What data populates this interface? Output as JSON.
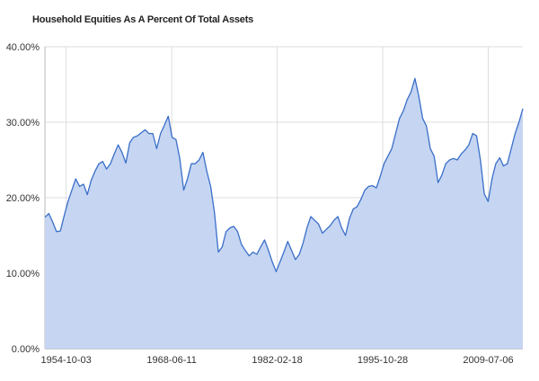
{
  "chart_data": {
    "type": "area",
    "title": "Household Equities As A Percent Of Total Assets",
    "xlabel": "",
    "ylabel": "",
    "ylim": [
      0,
      40
    ],
    "ytick_labels": [
      "0.00%",
      "10.00%",
      "20.00%",
      "30.00%",
      "40.00%"
    ],
    "xtick_labels": [
      "1954-10-03",
      "1968-06-11",
      "1982-02-18",
      "1995-10-28",
      "2009-07-06"
    ],
    "grid": true,
    "legend": "none",
    "colors": {
      "line": "#3a6fc8",
      "fill": "#c5d5f2",
      "grid": "#dddddd"
    },
    "series": [
      {
        "x": [
          "1951-12-31",
          "1952-06-30",
          "1952-12-31",
          "1953-06-30",
          "1953-12-31",
          "1954-06-30",
          "1954-12-31",
          "1955-06-30",
          "1955-12-31",
          "1956-06-30",
          "1956-12-31",
          "1957-06-30",
          "1957-12-31",
          "1958-06-30",
          "1958-12-31",
          "1959-06-30",
          "1959-12-31",
          "1960-06-30",
          "1960-12-31",
          "1961-06-30",
          "1961-12-31",
          "1962-06-30",
          "1962-12-31",
          "1963-06-30",
          "1963-12-31",
          "1964-06-30",
          "1964-12-31",
          "1965-06-30",
          "1965-12-31",
          "1966-06-30",
          "1966-12-31",
          "1967-06-30",
          "1967-12-31",
          "1968-06-30",
          "1968-12-31",
          "1969-06-30",
          "1969-12-31",
          "1970-06-30",
          "1970-12-31",
          "1971-06-30",
          "1971-12-31",
          "1972-06-30",
          "1972-12-31",
          "1973-06-30",
          "1973-12-31",
          "1974-06-30",
          "1974-12-31",
          "1975-06-30",
          "1975-12-31",
          "1976-06-30",
          "1976-12-31",
          "1977-06-30",
          "1977-12-31",
          "1978-06-30",
          "1978-12-31",
          "1979-06-30",
          "1979-12-31",
          "1980-06-30",
          "1980-12-31",
          "1981-06-30",
          "1981-12-31",
          "1982-06-30",
          "1982-12-31",
          "1983-06-30",
          "1983-12-31",
          "1984-06-30",
          "1984-12-31",
          "1985-06-30",
          "1985-12-31",
          "1986-06-30",
          "1986-12-31",
          "1987-06-30",
          "1987-12-31",
          "1988-06-30",
          "1988-12-31",
          "1989-06-30",
          "1989-12-31",
          "1990-06-30",
          "1990-12-31",
          "1991-06-30",
          "1991-12-31",
          "1992-06-30",
          "1992-12-31",
          "1993-06-30",
          "1993-12-31",
          "1994-06-30",
          "1994-12-31",
          "1995-06-30",
          "1995-12-31",
          "1996-06-30",
          "1996-12-31",
          "1997-06-30",
          "1997-12-31",
          "1998-06-30",
          "1998-12-31",
          "1999-06-30",
          "1999-12-31",
          "2000-06-30",
          "2000-12-31",
          "2001-06-30",
          "2001-12-31",
          "2002-06-30",
          "2002-12-31",
          "2003-06-30",
          "2003-12-31",
          "2004-06-30",
          "2004-12-31",
          "2005-06-30",
          "2005-12-31",
          "2006-06-30",
          "2006-12-31",
          "2007-06-30",
          "2007-12-31",
          "2008-06-30",
          "2008-12-31",
          "2009-06-30",
          "2009-12-31",
          "2010-06-30",
          "2010-12-31",
          "2011-06-30",
          "2011-12-31",
          "2012-06-30",
          "2012-12-31",
          "2013-06-30",
          "2013-12-31"
        ],
        "values": [
          17.4,
          17.9,
          16.8,
          15.5,
          15.6,
          17.6,
          19.5,
          21.0,
          22.5,
          21.5,
          21.8,
          20.4,
          22.3,
          23.5,
          24.5,
          24.8,
          23.8,
          24.5,
          25.8,
          27.0,
          26.0,
          24.6,
          27.3,
          28.0,
          28.2,
          28.6,
          29.0,
          28.5,
          28.5,
          26.5,
          28.5,
          29.6,
          30.8,
          28.0,
          27.7,
          25.2,
          21.0,
          22.5,
          24.5,
          24.5,
          25.0,
          26.0,
          23.5,
          21.5,
          18.0,
          12.8,
          13.5,
          15.5,
          16.0,
          16.2,
          15.5,
          13.8,
          13.0,
          12.3,
          12.8,
          12.5,
          13.5,
          14.4,
          13.0,
          11.5,
          10.2,
          11.5,
          12.8,
          14.2,
          13.0,
          11.8,
          12.5,
          14.0,
          16.0,
          17.5,
          17.0,
          16.5,
          15.3,
          15.8,
          16.3,
          17.0,
          17.5,
          16.0,
          15.0,
          17.2,
          18.5,
          18.8,
          19.8,
          21.0,
          21.5,
          21.6,
          21.3,
          22.8,
          24.5,
          25.5,
          26.5,
          28.5,
          30.5,
          31.5,
          33.0,
          34.0,
          35.8,
          33.5,
          30.5,
          29.5,
          26.5,
          25.5,
          22.0,
          23.0,
          24.5,
          25.0,
          25.2,
          25.0,
          25.8,
          26.3,
          27.0,
          28.5,
          28.2,
          25.0,
          20.5,
          19.5,
          22.5,
          24.5,
          25.3,
          24.2,
          24.5,
          26.5,
          28.5,
          30.0,
          31.8
        ]
      }
    ]
  }
}
